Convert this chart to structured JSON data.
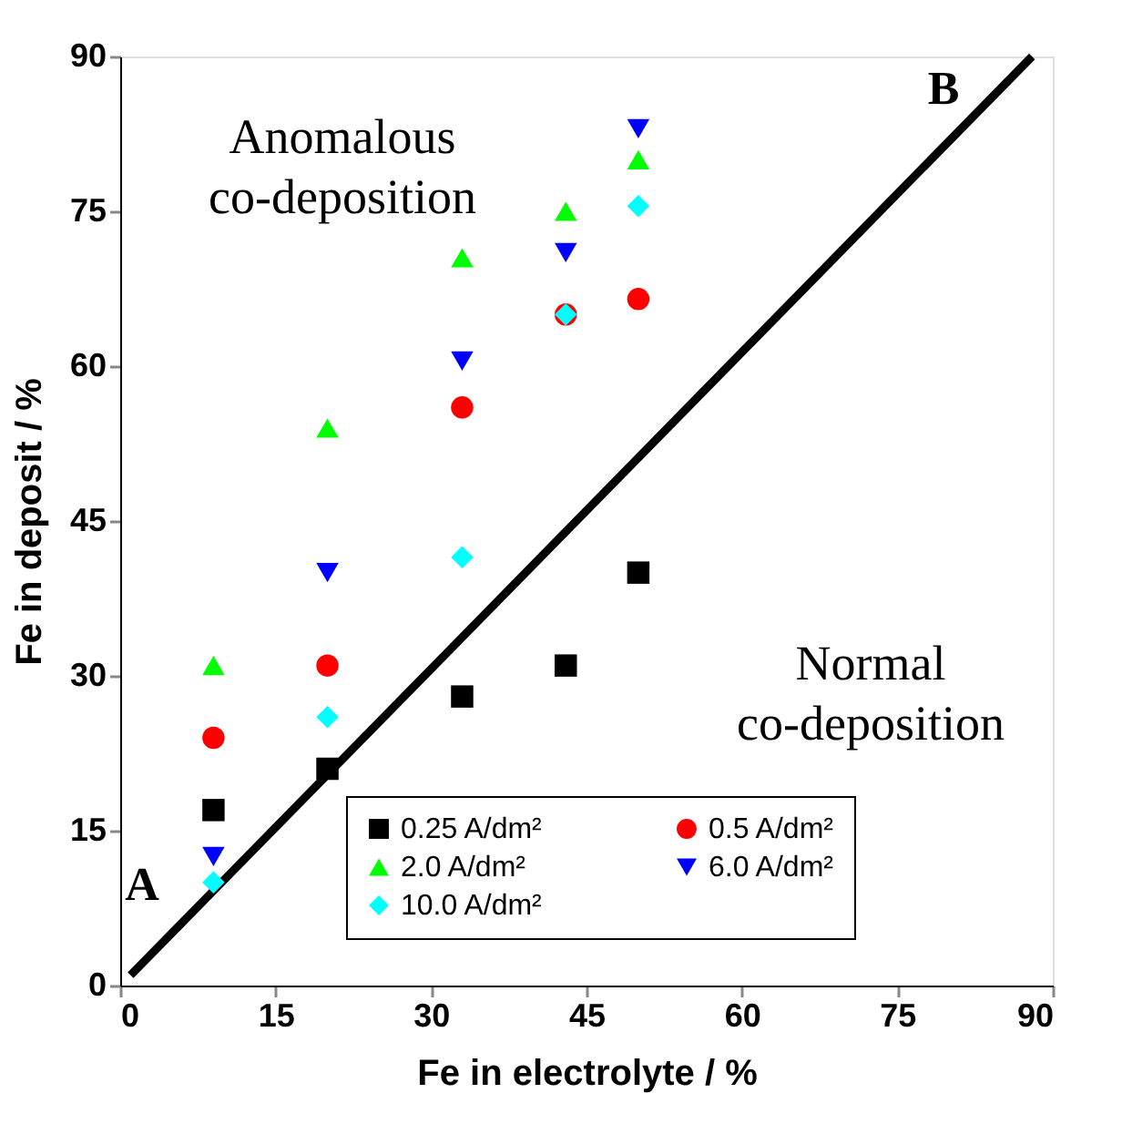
{
  "chart_data": {
    "type": "scatter",
    "xlabel": "Fe in electrolyte   /   %",
    "ylabel": "Fe in deposit   /   %",
    "x": [
      9,
      20,
      33,
      43,
      50
    ],
    "series": [
      {
        "name": "0.25 A/dm²",
        "color": "#000000",
        "marker": "square",
        "values": [
          17,
          21,
          28,
          31,
          40
        ]
      },
      {
        "name": "0.5 A/dm²",
        "color": "#ff0000",
        "marker": "circle",
        "values": [
          24,
          31,
          56,
          65,
          66.5
        ]
      },
      {
        "name": "2.0 A/dm²",
        "color": "#00ff00",
        "marker": "triangle",
        "values": [
          31,
          54,
          70.5,
          75,
          80
        ]
      },
      {
        "name": "6.0 A/dm²",
        "color": "#0000ff",
        "marker": "triangle-down",
        "values": [
          12.5,
          40,
          60.5,
          71,
          83
        ]
      },
      {
        "name": "10.0 A/dm²",
        "color": "#00ffff",
        "marker": "diamond",
        "values": [
          10,
          26,
          41.5,
          65,
          75.5
        ]
      },
      {
        "type": "line",
        "color": "#000000",
        "x": [
          1,
          88
        ],
        "values": [
          1,
          90
        ]
      }
    ],
    "annotations": [
      "Anomalous co-deposition",
      "Normal co-deposition",
      "A",
      "B"
    ],
    "xlim": [
      0,
      90
    ],
    "xticks": [
      0,
      15,
      30,
      45,
      60,
      75,
      90
    ],
    "ylim": [
      0,
      90
    ],
    "yticks": [
      0,
      15,
      30,
      45,
      60,
      75,
      90
    ],
    "grid": false,
    "legend": "bottom right"
  }
}
